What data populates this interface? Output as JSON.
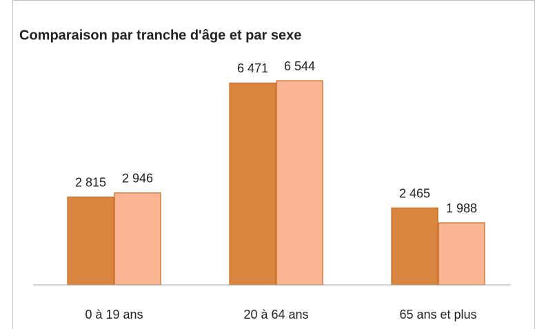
{
  "chart_data": {
    "type": "bar",
    "title": "Comparaison par tranche d'âge et par sexe",
    "categories": [
      "0 à 19 ans",
      "20 à 64 ans",
      "65 ans et plus"
    ],
    "series": [
      {
        "color": "#d9843f",
        "values": [
          2815,
          6471,
          2465
        ],
        "value_labels": [
          "2 815",
          "6 471",
          "2 465"
        ]
      },
      {
        "color": "#f9b591",
        "values": [
          2946,
          6544,
          1988
        ],
        "value_labels": [
          "2 946",
          "6 544",
          "1 988"
        ]
      }
    ]
  }
}
